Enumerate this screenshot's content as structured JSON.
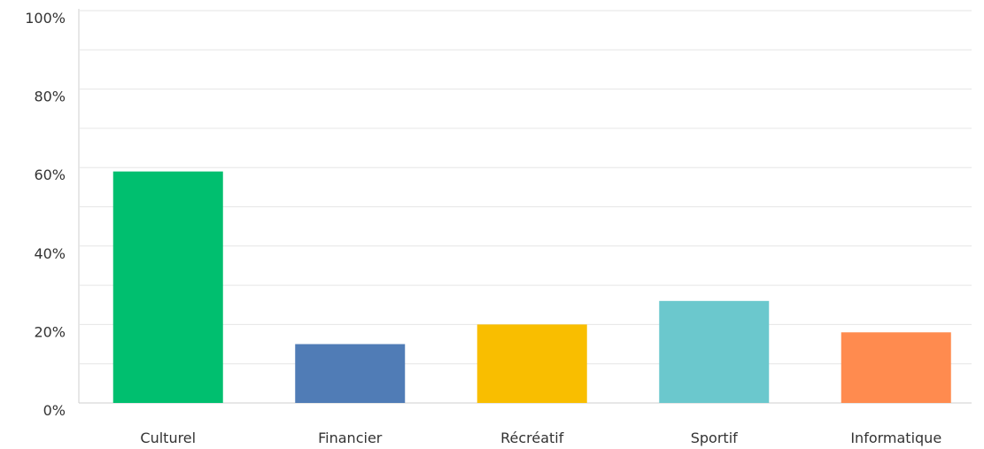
{
  "chart_data": {
    "type": "bar",
    "categories": [
      "Culturel",
      "Financier",
      "Récréatif",
      "Sportif",
      "Informatique"
    ],
    "values": [
      59,
      15,
      20,
      26,
      18
    ],
    "colors": [
      "#00bf6f",
      "#507cb6",
      "#f9be00",
      "#6bc8cd",
      "#ff8b4f"
    ],
    "ylim": [
      0,
      100
    ],
    "yticks": [
      {
        "value": 0,
        "label": "0%"
      },
      {
        "value": 20,
        "label": "20%"
      },
      {
        "value": 40,
        "label": "40%"
      },
      {
        "value": 60,
        "label": "60%"
      },
      {
        "value": 80,
        "label": "80%"
      },
      {
        "value": 100,
        "label": "100%"
      }
    ],
    "minor_yticks": [
      10,
      30,
      50,
      70,
      90
    ],
    "grid": true
  }
}
